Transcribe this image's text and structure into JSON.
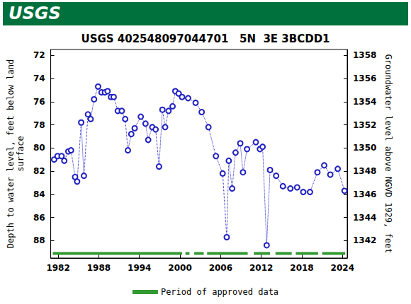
{
  "chart_data": {
    "type": "line",
    "logo": "USGS",
    "title": "USGS 402548097044701   5N  3E 3BCDD1",
    "ylabel": [
      "Depth to water level, feet below land",
      "surface"
    ],
    "y2label": "Groundwater level above NGVD 1929, feet",
    "xlim": [
      1980.9,
      2024.7
    ],
    "xticks": [
      1982,
      1988,
      1994,
      2000,
      2006,
      2012,
      2018,
      2024
    ],
    "ylim": [
      89.5,
      71.5
    ],
    "yticks": [
      72,
      74,
      76,
      78,
      80,
      82,
      84,
      86,
      88
    ],
    "y2lim": [
      1340.5,
      1358.5
    ],
    "y2ticks": [
      1342,
      1344,
      1346,
      1348,
      1350,
      1352,
      1354,
      1356,
      1358
    ],
    "legend": "bottom",
    "grid": false,
    "series": [
      {
        "color": "#1f1fbf",
        "marker": "circle",
        "line_style": "dotted",
        "x": [
          1981.4,
          1981.9,
          1982.5,
          1982.9,
          1983.5,
          1983.9,
          1984.5,
          1984.8,
          1985.4,
          1985.8,
          1986.4,
          1986.8,
          1987.3,
          1987.9,
          1988.4,
          1988.9,
          1989.3,
          1989.8,
          1990.2,
          1990.8,
          1991.4,
          1991.9,
          1992.3,
          1992.8,
          1993.3,
          1994.2,
          1994.9,
          1995.3,
          1995.9,
          1996.4,
          1996.9,
          1997.4,
          1997.8,
          1998.3,
          1998.9,
          1999.3,
          1999.8,
          2000.3,
          2001.2,
          2002.3,
          2003.2,
          2004.2,
          2005.3,
          2006.3,
          2006.9,
          2007.2,
          2007.7,
          2008.2,
          2008.9,
          2009.3,
          2009.9,
          2011.2,
          2011.8,
          2012.2,
          2012.8,
          2013.3,
          2014.2,
          2015.2,
          2016.3,
          2017.3,
          2018.2,
          2019.2,
          2020.3,
          2021.3,
          2022.2,
          2023.3,
          2024.3
        ],
        "values": [
          81.0,
          80.7,
          80.7,
          81.1,
          80.3,
          80.2,
          82.5,
          82.9,
          77.8,
          82.4,
          77.1,
          77.5,
          75.8,
          74.7,
          75.2,
          75.2,
          75.1,
          75.6,
          75.6,
          76.8,
          76.8,
          77.5,
          80.2,
          78.8,
          78.3,
          77.3,
          77.9,
          79.3,
          78.2,
          78.4,
          81.6,
          76.7,
          78.2,
          76.8,
          76.4,
          75.1,
          75.3,
          75.6,
          75.7,
          76.1,
          76.9,
          78.2,
          80.7,
          82.2,
          87.7,
          81.1,
          83.5,
          80.4,
          79.6,
          82.1,
          80.1,
          79.5,
          80.1,
          79.9,
          88.4,
          81.9,
          82.4,
          83.3,
          83.5,
          83.4,
          83.8,
          83.8,
          82.1,
          81.5,
          82.3,
          81.8,
          83.7
        ]
      },
      {
        "name": "Period of approved data",
        "color": "#339933",
        "line_style": "solid",
        "x": [
          1981.2,
          2000.3,
          2000.6,
          2000.8,
          2001.4,
          2001.7,
          2002.1,
          2003.5,
          2003.8,
          2004.0,
          2010.0,
          2010.4,
          2010.9,
          2013.3,
          2013.7,
          2014.1,
          2016.5,
          2016.8,
          2017.1,
          2020.4,
          2020.7,
          2021.0,
          2024.4
        ],
        "values": [
          89.1,
          89.1,
          null,
          89.1,
          89.1,
          null,
          89.1,
          89.1,
          null,
          89.1,
          89.1,
          null,
          89.1,
          89.1,
          null,
          89.1,
          89.1,
          null,
          89.1,
          89.1,
          null,
          89.1,
          89.1
        ]
      }
    ]
  }
}
